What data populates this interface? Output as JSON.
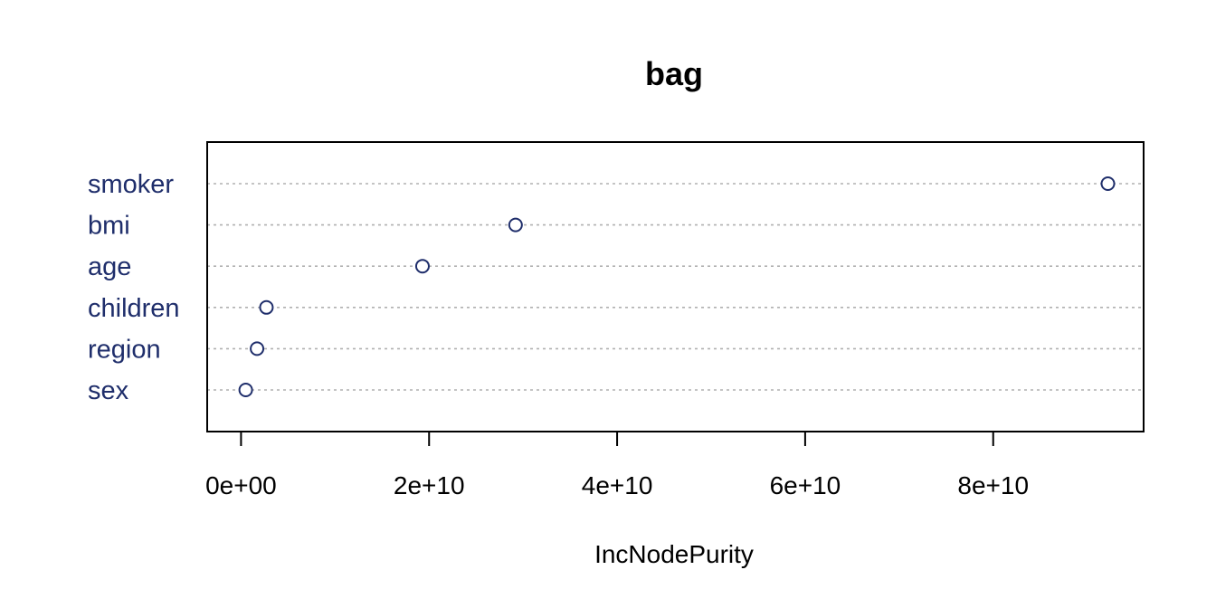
{
  "chart_data": {
    "type": "scatter",
    "title": "bag",
    "xlabel": "IncNodePurity",
    "ylabel": "",
    "categories": [
      "smoker",
      "bmi",
      "age",
      "children",
      "region",
      "sex"
    ],
    "values": [
      92200000000,
      29200000000,
      19300000000,
      2700000000,
      1700000000,
      500000000
    ],
    "xlim": [
      -3600000000,
      96000000000
    ],
    "xticks": [
      0,
      20000000000,
      40000000000,
      60000000000,
      80000000000
    ],
    "xtick_labels": [
      "0e+00",
      "2e+10",
      "4e+10",
      "6e+10",
      "8e+10"
    ],
    "grid": "dotted horizontal lines per category",
    "colors": {
      "points": "#1f2e6b",
      "labels": "#1f2e6b",
      "gridlines": "#b0b0b0",
      "frame": "#000000"
    }
  }
}
